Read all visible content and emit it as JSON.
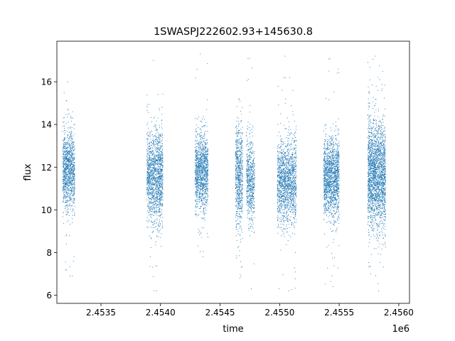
{
  "chart_data": {
    "type": "scatter",
    "title": "1SWASPJ222602.93+145630.8",
    "xlabel": "time",
    "ylabel": "flux",
    "x_offset_label": "1e6",
    "xlim": [
      2453130,
      2456090
    ],
    "ylim": [
      5.62,
      17.9
    ],
    "x_ticks": [
      2453500,
      2454000,
      2454500,
      2455000,
      2455500,
      2456000
    ],
    "x_tick_labels": [
      "2.4535",
      "2.4540",
      "2.4545",
      "2.4550",
      "2.4555",
      "2.4560"
    ],
    "y_ticks": [
      6,
      8,
      10,
      12,
      14,
      16
    ],
    "y_tick_labels": [
      "6",
      "8",
      "10",
      "12",
      "14",
      "16"
    ],
    "grid": false,
    "legend": "none",
    "marker_color": "#1f77b4",
    "series": [
      {
        "clusters": [
          {
            "x_start": 2453180,
            "x_end": 2453280,
            "median": 11.9,
            "spread": 0.95,
            "density": 1100,
            "high": 16.0,
            "low": 6.9
          },
          {
            "x_start": 2453885,
            "x_end": 2454020,
            "median": 11.6,
            "spread": 1.05,
            "density": 1500,
            "high": 17.0,
            "low": 6.2
          },
          {
            "x_start": 2454290,
            "x_end": 2454400,
            "median": 11.8,
            "spread": 0.9,
            "density": 1200,
            "high": 17.3,
            "low": 7.8
          },
          {
            "x_start": 2454630,
            "x_end": 2454690,
            "median": 11.6,
            "spread": 1.2,
            "density": 700,
            "high": 15.2,
            "low": 6.8
          },
          {
            "x_start": 2454720,
            "x_end": 2454790,
            "median": 11.4,
            "spread": 0.95,
            "density": 600,
            "high": 17.1,
            "low": 6.3
          },
          {
            "x_start": 2454980,
            "x_end": 2455140,
            "median": 11.3,
            "spread": 1.0,
            "density": 1500,
            "high": 17.2,
            "low": 6.2
          },
          {
            "x_start": 2455370,
            "x_end": 2455500,
            "median": 11.5,
            "spread": 0.95,
            "density": 1500,
            "high": 17.1,
            "low": 6.4
          },
          {
            "x_start": 2455740,
            "x_end": 2455890,
            "median": 11.6,
            "spread": 1.25,
            "density": 2200,
            "high": 17.2,
            "low": 6.2
          }
        ]
      }
    ]
  }
}
